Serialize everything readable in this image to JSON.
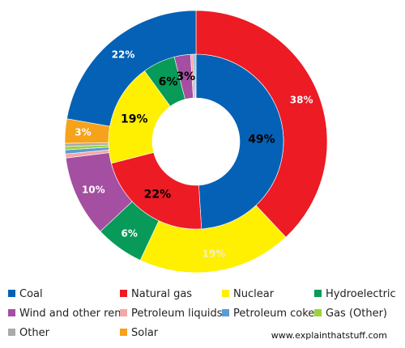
{
  "chart_data": {
    "type": "pie",
    "inner_ring": {
      "values": [
        49,
        22,
        19,
        6,
        3,
        0.5,
        0.3,
        0.2
      ],
      "colors": [
        "#0561b5",
        "#ec1b24",
        "#ffef01",
        "#089a58",
        "#a44fa1",
        "#f4a7a7",
        "#5b9bd5",
        "#9bd33a"
      ],
      "labels": [
        "49%",
        "22%",
        "19%",
        "6%",
        "3%",
        "",
        "",
        ""
      ]
    },
    "outer_ring": {
      "values": [
        38,
        19,
        6,
        10,
        0.5,
        0.5,
        0.4,
        0.4,
        3,
        22.2
      ],
      "colors": [
        "#ec1b24",
        "#ffef01",
        "#089a58",
        "#a44fa1",
        "#f4a7a7",
        "#5b9bd5",
        "#9bd33a",
        "#aaaaaa",
        "#f7a21b",
        "#0561b5"
      ],
      "labels": [
        "38%",
        "19%",
        "6%",
        "10%",
        "",
        "",
        "",
        "",
        "3%",
        "22%"
      ]
    },
    "legend": [
      {
        "label": "Coal",
        "color": "#0561b5"
      },
      {
        "label": "Natural gas",
        "color": "#ec1b24"
      },
      {
        "label": "Nuclear",
        "color": "#ffef01"
      },
      {
        "label": "Hydroelectric",
        "color": "#089a58"
      },
      {
        "label": "Wind and other ren",
        "color": "#a44fa1"
      },
      {
        "label": "Petroleum liquids",
        "color": "#f4a7a7"
      },
      {
        "label": "Petroleum coke",
        "color": "#5b9bd5"
      },
      {
        "label": "Gas (Other)",
        "color": "#9bd33a"
      },
      {
        "label": "Other",
        "color": "#aaaaaa"
      },
      {
        "label": "Solar",
        "color": "#f7a21b"
      }
    ]
  },
  "credit": "www.explainthatstuff.com"
}
